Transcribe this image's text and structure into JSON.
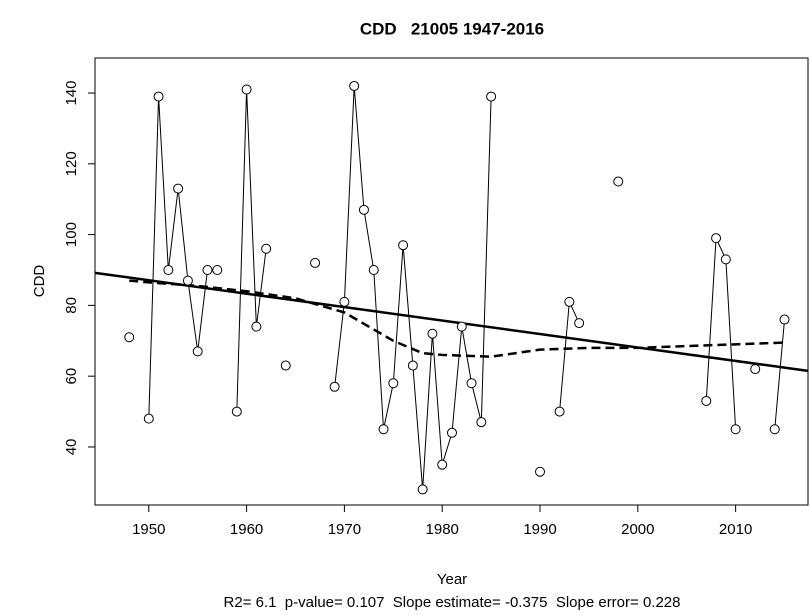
{
  "chart_data": {
    "type": "line",
    "title": "CDD   21005 1947-2016",
    "x_label": "Year",
    "y_label": "CDD",
    "subtitle": "R2= 6.1  p-value= 0.107  Slope estimate= -0.375  Slope error= 0.228",
    "x": [
      1947,
      1948,
      1949,
      1950,
      1951,
      1952,
      1953,
      1954,
      1955,
      1956,
      1957,
      1958,
      1959,
      1960,
      1961,
      1962,
      1963,
      1964,
      1965,
      1966,
      1967,
      1968,
      1969,
      1970,
      1971,
      1972,
      1973,
      1974,
      1975,
      1976,
      1977,
      1978,
      1979,
      1980,
      1981,
      1982,
      1983,
      1984,
      1985,
      1986,
      1987,
      1988,
      1989,
      1990,
      1991,
      1992,
      1993,
      1994,
      1995,
      1996,
      1997,
      1998,
      1999,
      2000,
      2001,
      2002,
      2003,
      2004,
      2005,
      2006,
      2007,
      2008,
      2009,
      2010,
      2011,
      2012,
      2013,
      2014,
      2015,
      2016
    ],
    "series": [
      {
        "color": "#000000",
        "values": [
          null,
          71,
          null,
          48,
          139,
          90,
          113,
          87,
          67,
          90,
          90,
          null,
          50,
          141,
          74,
          96,
          null,
          63,
          null,
          null,
          92,
          null,
          57,
          81,
          142,
          107,
          90,
          45,
          58,
          97,
          63,
          28,
          72,
          35,
          44,
          74,
          58,
          47,
          139,
          null,
          null,
          null,
          null,
          33,
          null,
          50,
          81,
          75,
          null,
          null,
          null,
          115,
          null,
          null,
          null,
          null,
          null,
          null,
          null,
          null,
          53,
          99,
          93,
          45,
          null,
          62,
          null,
          45,
          76,
          null
        ]
      }
    ],
    "trend": {
      "color": "#000000",
      "x": [
        1944.5,
        2017.4
      ],
      "values": [
        89.2,
        61.5
      ]
    },
    "smooth": {
      "color": "#000000",
      "x": [
        1948,
        1950,
        1955,
        1960,
        1965,
        1970,
        1975,
        1978,
        1980,
        1985,
        1990,
        1995,
        2000,
        2005,
        2010,
        2015
      ],
      "values": [
        87,
        86.5,
        85.5,
        84,
        82,
        78,
        70,
        66.5,
        66,
        65.5,
        67.5,
        68,
        68,
        68.5,
        69,
        69.5
      ]
    },
    "xlim": [
      1944.5,
      2017.4
    ],
    "ylim": [
      23.6,
      149.9
    ],
    "xticks": [
      1950,
      1960,
      1970,
      1980,
      1990,
      2000,
      2010
    ],
    "yticks": [
      40,
      60,
      80,
      100,
      120,
      140
    ]
  }
}
